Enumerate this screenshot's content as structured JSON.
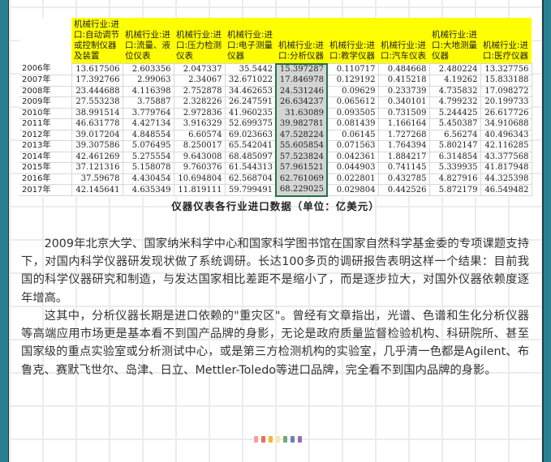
{
  "table": {
    "headers": [
      "机械行业:进口:自动调节或控制仪器及装置",
      "机械行业:进口:流量、液位仪表",
      "机械行业:进口:压力检测仪表",
      "机械行业:进口:电子测量仪器",
      "机械行业:进口:分析仪器",
      "机械行业:进口:教学仪器",
      "机械行业:进口:汽车仪表",
      "机械行业:进口:大地测量仪器",
      "机械行业:进口:医疗仪器"
    ],
    "selected_column": 4,
    "rows": [
      {
        "year": "2006年",
        "values": [
          "13.617506",
          "2.603356",
          "2.047337",
          "35.5442",
          "15.397287",
          "0.110717",
          "0.484668",
          "2.480224",
          "13.327756"
        ]
      },
      {
        "year": "2007年",
        "values": [
          "17.392766",
          "2.99063",
          "2.34067",
          "32.671022",
          "17.846978",
          "0.129192",
          "0.415218",
          "4.19262",
          "15.833188"
        ]
      },
      {
        "year": "2008年",
        "values": [
          "23.444688",
          "4.116398",
          "2.752878",
          "34.462653",
          "24.531246",
          "0.09629",
          "0.233739",
          "4.735832",
          "17.098272"
        ]
      },
      {
        "year": "2009年",
        "values": [
          "27.553238",
          "3.75887",
          "2.328226",
          "26.247591",
          "26.634237",
          "0.065612",
          "0.340101",
          "4.799232",
          "20.199733"
        ]
      },
      {
        "year": "2010年",
        "values": [
          "38.991514",
          "3.779764",
          "2.972836",
          "41.960235",
          "31.63089",
          "0.093505",
          "0.731509",
          "5.244425",
          "26.617726"
        ]
      },
      {
        "year": "2011年",
        "values": [
          "46.631778",
          "4.427134",
          "3.916329",
          "52.699375",
          "39.982781",
          "0.081439",
          "1.166164",
          "5.450387",
          "34.910688"
        ]
      },
      {
        "year": "2012年",
        "values": [
          "39.017204",
          "4.848554",
          "6.60574",
          "69.023663",
          "47.528224",
          "0.06145",
          "1.727268",
          "6.56274",
          "40.496343"
        ]
      },
      {
        "year": "2013年",
        "values": [
          "39.307586",
          "5.076495",
          "8.250017",
          "65.542041",
          "55.605854",
          "0.071563",
          "1.764394",
          "5.802147",
          "42.116285"
        ]
      },
      {
        "year": "2014年",
        "values": [
          "42.461269",
          "5.275554",
          "9.643008",
          "68.485097",
          "57.523824",
          "0.042361",
          "1.884217",
          "6.314854",
          "43.377568"
        ]
      },
      {
        "year": "2015年",
        "values": [
          "37.121316",
          "5.158078",
          "9.760376",
          "61.544313",
          "57.961521",
          "0.044903",
          "0.741145",
          "5.339935",
          "41.817948"
        ]
      },
      {
        "year": "2016年",
        "values": [
          "37.59678",
          "4.430454",
          "10.694804",
          "62.568704",
          "62.761069",
          "0.022801",
          "0.432785",
          "4.827916",
          "44.325398"
        ]
      },
      {
        "year": "2017年",
        "values": [
          "42.145641",
          "4.635349",
          "11.819111",
          "59.799491",
          "68.229025",
          "0.029804",
          "0.442526",
          "5.872179",
          "46.549482"
        ]
      }
    ]
  },
  "caption": "仪器仪表各行业进口数据（单位：亿美元）",
  "paragraphs": [
    "2009年北京大学、国家纳米科学中心和国家科学图书馆在国家自然科学基金委的专项课题支持下，对国内科学仪器研发现状做了系统调研。长达100多页的调研报告表明这样一个结果：目前我国的科学仪器研究和制造，与发达国家相比差距不是缩小了，而是逐步拉大，对国外仪器依赖度逐年增高。",
    "这其中，分析仪器长期是进口依赖的\"重灾区\"。曾经有文章指出，光谱、色谱和生化分析仪器等高端应用市场更是基本看不到国产品牌的身影，无论是政府质量监督检验机构、科研院所、甚至国家级的重点实验室或分析测试中心，或是第三方检测机构的实验室，几乎清一色都是Agilent、布鲁克、赛默飞世尔、岛津、日立、Mettler-Toledo等进口品牌，完全看不到国内品牌的身影。"
  ],
  "colors": {
    "frame": "#2b7f93",
    "header_highlight": "#ffff00",
    "selection_border": "#217346",
    "divider_dots": [
      "#f4a0a0",
      "#ee6a5a",
      "#f2b640",
      "#f8e8a0",
      "#6ea880",
      "#6a80b8",
      "#9070b0"
    ]
  }
}
